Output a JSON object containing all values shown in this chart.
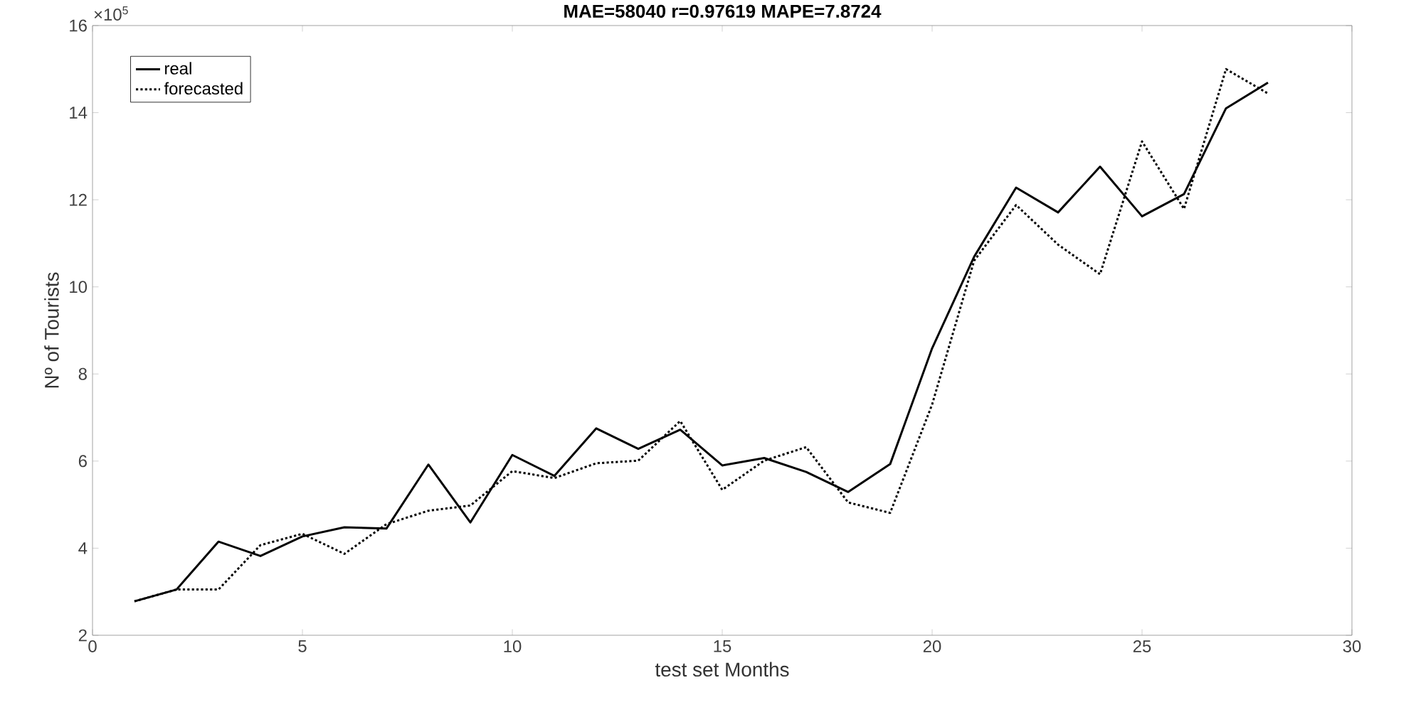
{
  "chart_data": {
    "type": "line",
    "title": "MAE=58040   r=0.97619   MAPE=7.8724",
    "xlabel": "test set Months",
    "ylabel": "Nº of Tourists",
    "annotations": [
      "×10$^{5}$"
    ],
    "x": [
      1,
      2,
      3,
      4,
      5,
      6,
      7,
      8,
      9,
      10,
      11,
      12,
      13,
      14,
      15,
      16,
      17,
      18,
      19,
      20,
      21,
      22,
      23,
      24,
      25,
      26,
      27,
      28
    ],
    "series": [
      {
        "name": "real",
        "color": "#000000",
        "line_style": "solid",
        "values": [
          2.78,
          3.05,
          4.15,
          3.82,
          4.27,
          4.48,
          4.45,
          5.92,
          4.59,
          6.14,
          5.66,
          6.75,
          6.28,
          6.72,
          5.9,
          6.07,
          5.75,
          5.29,
          5.93,
          8.59,
          10.69,
          12.28,
          11.71,
          12.76,
          11.62,
          12.13,
          14.1,
          14.69
        ]
      },
      {
        "name": "forecasted",
        "color": "#000000",
        "line_style": "dotted",
        "values": [
          2.78,
          3.05,
          3.05,
          4.07,
          4.33,
          3.87,
          4.55,
          4.86,
          4.98,
          5.77,
          5.61,
          5.95,
          6.01,
          6.92,
          5.34,
          6.01,
          6.32,
          5.05,
          4.81,
          7.3,
          10.6,
          11.88,
          10.97,
          10.29,
          13.34,
          11.79,
          15.0,
          14.44
        ]
      }
    ],
    "xlim": [
      0,
      30
    ],
    "xticks": [
      0,
      5,
      10,
      15,
      20,
      25,
      30
    ],
    "ylim": [
      2,
      16
    ],
    "yticks": [
      2,
      4,
      6,
      8,
      10,
      12,
      14,
      16
    ],
    "grid": false,
    "legend": "top left"
  }
}
